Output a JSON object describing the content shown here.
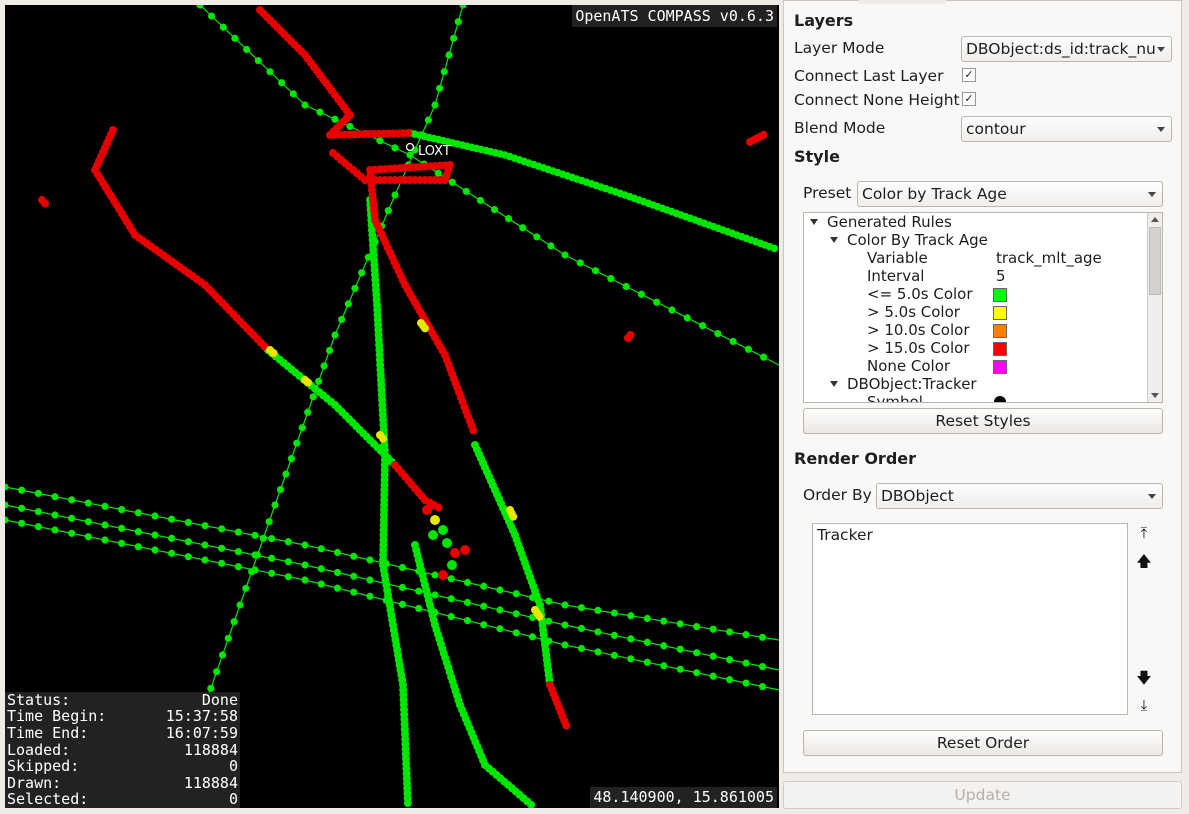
{
  "map": {
    "app_title": "OpenATS COMPASS v0.6.3",
    "waypoint_label": "LOXT",
    "coordinates": "48.140900, 15.861005",
    "status": [
      {
        "label": "Status:",
        "value": "Done"
      },
      {
        "label": "Time Begin:",
        "value": "15:37:58"
      },
      {
        "label": "Time End:",
        "value": "16:07:59"
      },
      {
        "label": "Loaded:",
        "value": "118884"
      },
      {
        "label": "Skipped:",
        "value": "0"
      },
      {
        "label": "Drawn:",
        "value": "118884"
      },
      {
        "label": "Selected:",
        "value": "0"
      }
    ]
  },
  "layers": {
    "heading": "Layers",
    "layer_mode_label": "Layer Mode",
    "layer_mode_value": "DBObject:ds_id:track_nu",
    "connect_last_layer_label": "Connect Last Layer",
    "connect_last_layer_checked": true,
    "connect_none_height_label": "Connect None Height",
    "connect_none_height_checked": true,
    "blend_mode_label": "Blend Mode",
    "blend_mode_value": "contour"
  },
  "style": {
    "heading": "Style",
    "preset_label": "Preset",
    "preset_value": "Color by Track Age",
    "tree": {
      "root": "Generated Rules",
      "group": "Color By Track Age",
      "variable_label": "Variable",
      "variable_value": "track_mlt_age",
      "interval_label": "Interval",
      "interval_value": "5",
      "color_rules": [
        {
          "label": "<= 5.0s Color",
          "color": "#00ff00"
        },
        {
          "label": "> 5.0s Color",
          "color": "#ffff00"
        },
        {
          "label": "> 10.0s Color",
          "color": "#ff8000"
        },
        {
          "label": "> 15.0s Color",
          "color": "#ff0000"
        },
        {
          "label": "None Color",
          "color": "#ff00ff"
        }
      ],
      "group2": "DBObject:Tracker",
      "symbol_label": "Symbol"
    },
    "reset_styles_label": "Reset Styles"
  },
  "render_order": {
    "heading": "Render Order",
    "order_by_label": "Order By",
    "order_by_value": "DBObject",
    "items": [
      "Tracker"
    ],
    "reset_order_label": "Reset Order"
  },
  "update_label": "Update",
  "colors": {
    "green": "#00e600",
    "red": "#e60000",
    "yellow": "#e6e600"
  }
}
